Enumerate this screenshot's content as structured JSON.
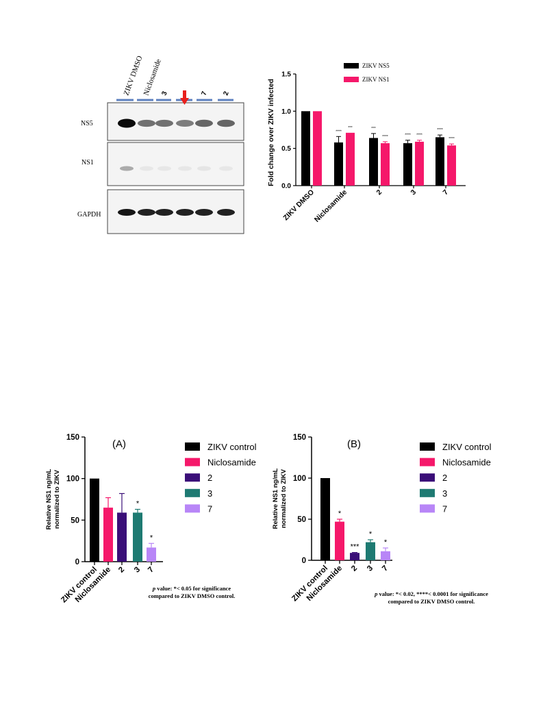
{
  "colors": {
    "black": "#000000",
    "pink": "#f5186a",
    "purple": "#3a0e78",
    "teal": "#1e7a72",
    "lavender": "#b886f7",
    "lane_marker": "#5b7fbf",
    "arrow": "#e8201c"
  },
  "blot": {
    "lane_labels": [
      "ZIKV DMSO",
      "Niclosamide",
      "3",
      "",
      "7",
      "2"
    ],
    "arrow_icon": "down-arrow-icon",
    "row_labels": [
      "NS5",
      "NS1",
      "GAPDH"
    ],
    "band_intensity": {
      "NS5": [
        1.0,
        0.55,
        0.55,
        0.5,
        0.6,
        0.6
      ],
      "NS1": [
        0.3,
        0.04,
        0.04,
        0.04,
        0.05,
        0.04
      ],
      "GAPDH": [
        0.95,
        0.9,
        0.9,
        0.9,
        0.9,
        0.9
      ]
    }
  },
  "chart_data": [
    {
      "type": "bar",
      "categories": [
        "ZIKV DMSO",
        "Niclosamide",
        "2",
        "3",
        "7"
      ],
      "series": [
        {
          "name": "ZIKV NS5",
          "color": "#000000",
          "values": [
            1.0,
            0.58,
            0.64,
            0.57,
            0.65
          ],
          "errors": [
            0,
            0.08,
            0.06,
            0.04,
            0.03
          ],
          "stars": [
            "",
            "****",
            "***",
            "****",
            "****"
          ]
        },
        {
          "name": "ZIKV NS1",
          "color": "#f5186a",
          "values": [
            1.0,
            0.71,
            0.57,
            0.59,
            0.54
          ],
          "errors": [
            0,
            0,
            0.02,
            0.02,
            0.02
          ],
          "stars": [
            "",
            "***",
            "****",
            "****",
            "****"
          ]
        }
      ],
      "ylabel": "Fold change over ZIKV infected",
      "ylim": [
        0,
        1.5
      ],
      "yticks": [
        "0.0",
        "0.5",
        "1.0",
        "1.5"
      ],
      "legend": "top-right"
    },
    {
      "type": "bar",
      "title": "(A)",
      "categories": [
        "ZIKV control",
        "Niclosamide",
        "2",
        "3",
        "7"
      ],
      "values": [
        100,
        65,
        59,
        59,
        17
      ],
      "errors": [
        0,
        12,
        23,
        4,
        5
      ],
      "stars": [
        "",
        "",
        "",
        "*",
        "*"
      ],
      "colors": [
        "#000000",
        "#f5186a",
        "#3a0e78",
        "#1e7a72",
        "#b886f7"
      ],
      "ylabel_lines": [
        "Relative  NS1 ng/mL",
        "normalized to ZIKV"
      ],
      "ylim": [
        0,
        150
      ],
      "yticks": [
        "0",
        "50",
        "100",
        "150"
      ],
      "legend": "right",
      "footnote_lines": [
        "p value:  *< 0.05 for significance",
        "compared to ZIKV DMSO control."
      ]
    },
    {
      "type": "bar",
      "title": "(B)",
      "categories": [
        "ZIKV control",
        "Niclosamide",
        "2",
        "3",
        "7"
      ],
      "values": [
        100,
        47,
        9,
        22,
        11
      ],
      "errors": [
        0,
        3,
        0.5,
        3,
        4
      ],
      "stars": [
        "",
        "*",
        "***",
        "*",
        "*"
      ],
      "colors": [
        "#000000",
        "#f5186a",
        "#3a0e78",
        "#1e7a72",
        "#b886f7"
      ],
      "ylabel_lines": [
        "Relative  NS1 ng/mL",
        "normalized to ZIKV"
      ],
      "ylim": [
        0,
        150
      ],
      "yticks": [
        "0",
        "50",
        "100",
        "150"
      ],
      "legend": "right",
      "footnote_lines": [
        "p value:  *< 0.02, ****< 0.0001 for significance",
        "compared to ZIKV DMSO control."
      ]
    }
  ]
}
